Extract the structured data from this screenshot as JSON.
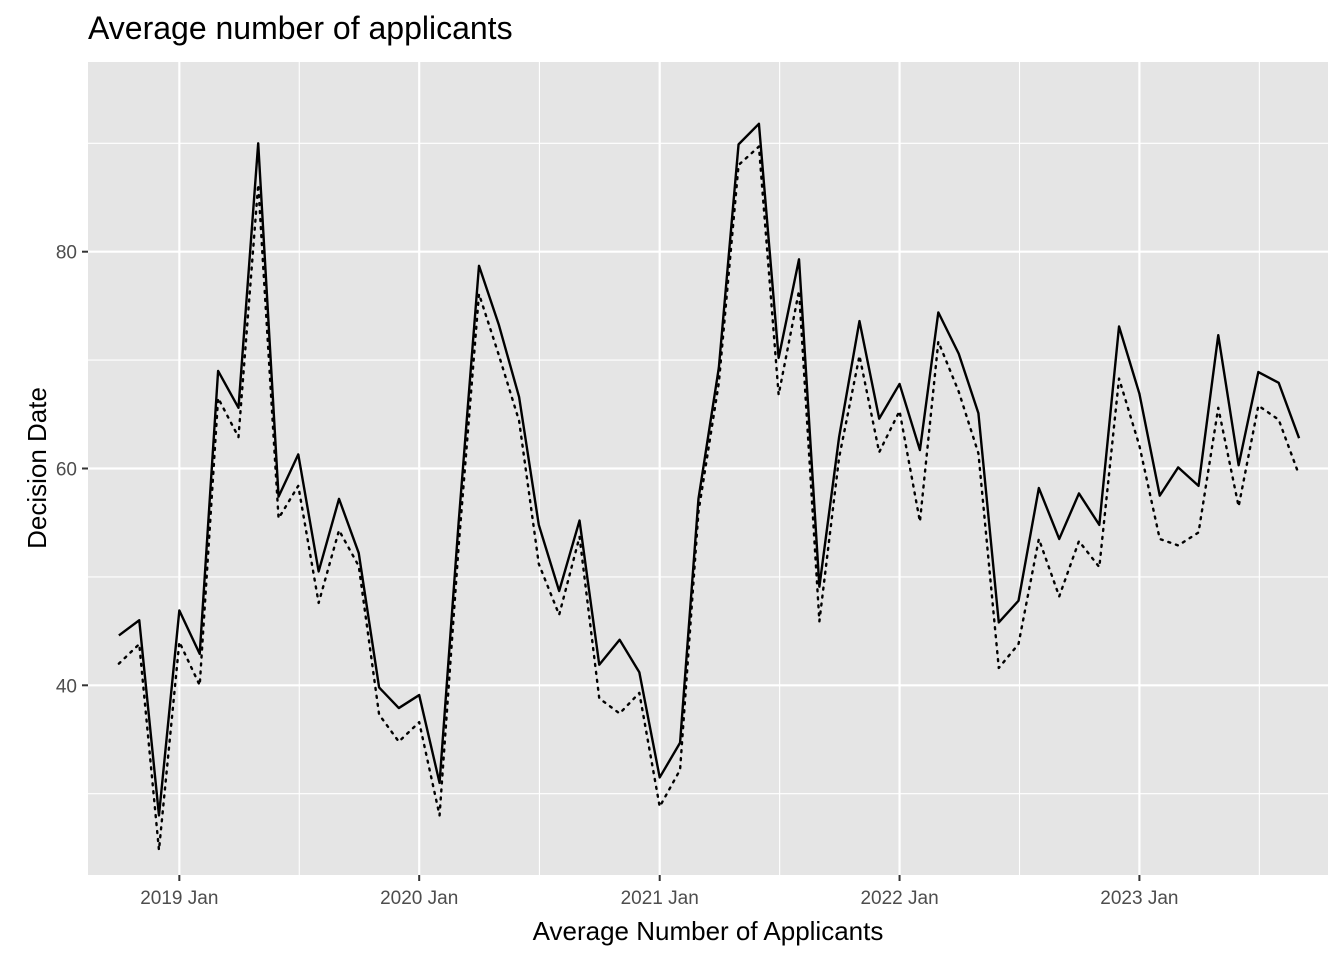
{
  "chart_data": {
    "type": "line",
    "title": "Average number of applicants",
    "xlabel": "Average Number of Applicants",
    "ylabel": "Decision Date",
    "x_ticks": [
      {
        "date": "2019-01-01",
        "label": "2019 Jan"
      },
      {
        "date": "2020-01-01",
        "label": "2020 Jan"
      },
      {
        "date": "2021-01-01",
        "label": "2021 Jan"
      },
      {
        "date": "2022-01-01",
        "label": "2022 Jan"
      },
      {
        "date": "2023-01-01",
        "label": "2023 Jan"
      }
    ],
    "y_ticks": [
      40,
      60,
      80
    ],
    "xlim": [
      "2018-08-15",
      "2023-10-15"
    ],
    "ylim": [
      22.5,
      97.5
    ],
    "grid": true,
    "legend": "none",
    "panel_background": "#e5e5e5",
    "x": [
      "2018-10-01",
      "2018-11-01",
      "2018-12-01",
      "2019-01-01",
      "2019-02-01",
      "2019-03-01",
      "2019-04-01",
      "2019-05-01",
      "2019-06-01",
      "2019-07-01",
      "2019-08-01",
      "2019-09-01",
      "2019-10-01",
      "2019-11-01",
      "2019-12-01",
      "2020-01-01",
      "2020-02-01",
      "2020-03-01",
      "2020-04-01",
      "2020-05-01",
      "2020-06-01",
      "2020-07-01",
      "2020-08-01",
      "2020-09-01",
      "2020-10-01",
      "2020-11-01",
      "2020-12-01",
      "2021-01-01",
      "2021-02-01",
      "2021-03-01",
      "2021-04-01",
      "2021-05-01",
      "2021-06-01",
      "2021-07-01",
      "2021-08-01",
      "2021-09-01",
      "2021-10-01",
      "2021-11-01",
      "2021-12-01",
      "2022-01-01",
      "2022-02-01",
      "2022-03-01",
      "2022-04-01",
      "2022-05-01",
      "2022-06-01",
      "2022-07-01",
      "2022-08-01",
      "2022-09-01",
      "2022-10-01",
      "2022-11-01",
      "2022-12-01",
      "2023-01-01",
      "2023-02-01",
      "2023-03-01",
      "2023-04-01",
      "2023-05-01",
      "2023-06-01",
      "2023-07-01",
      "2023-08-01",
      "2023-09-01"
    ],
    "series": [
      {
        "style": "solid",
        "color": "#000000",
        "values": [
          44.6,
          46.0,
          28.0,
          46.9,
          42.9,
          69.0,
          65.6,
          90.0,
          57.4,
          61.3,
          50.5,
          57.2,
          52.2,
          39.8,
          37.9,
          39.1,
          31.0,
          55.0,
          78.7,
          73.3,
          66.6,
          54.8,
          48.7,
          55.2,
          41.9,
          44.2,
          41.2,
          31.5,
          34.7,
          57.2,
          69.3,
          89.9,
          91.8,
          70.2,
          79.3,
          49.1,
          62.9,
          73.6,
          64.6,
          67.8,
          61.7,
          74.4,
          70.6,
          65.1,
          45.8,
          47.8,
          58.2,
          53.5,
          57.7,
          54.8,
          73.1,
          66.9,
          57.5,
          60.1,
          58.4,
          72.3,
          60.3,
          68.9,
          67.9,
          62.8
        ]
      },
      {
        "style": "dotted",
        "color": "#000000",
        "values": [
          42.0,
          43.8,
          24.8,
          44.0,
          40.0,
          66.5,
          62.9,
          86.2,
          55.4,
          58.4,
          47.6,
          54.3,
          51.0,
          37.3,
          34.8,
          36.6,
          28.0,
          52.8,
          76.1,
          70.5,
          64.4,
          51.2,
          46.5,
          53.7,
          38.8,
          37.4,
          39.3,
          28.8,
          32.2,
          56.0,
          67.9,
          88.0,
          89.7,
          66.8,
          76.4,
          45.9,
          61.0,
          70.4,
          61.5,
          65.3,
          55.1,
          71.7,
          67.1,
          61.4,
          41.6,
          43.8,
          53.5,
          48.2,
          53.3,
          50.9,
          68.3,
          62.1,
          53.5,
          52.9,
          54.1,
          65.6,
          56.5,
          65.8,
          64.5,
          59.4
        ]
      }
    ]
  }
}
